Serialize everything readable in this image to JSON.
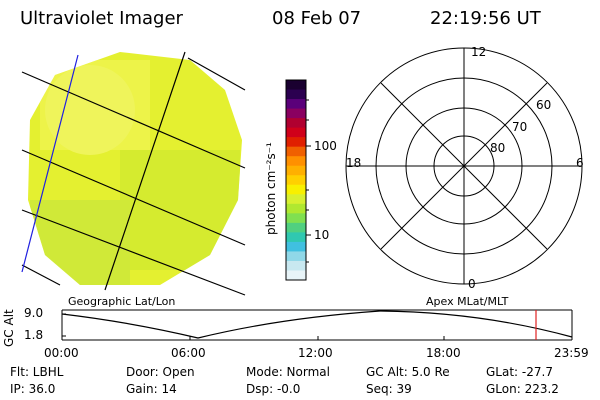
{
  "header": {
    "instrument": "Ultraviolet Imager",
    "date": "08 Feb 07",
    "time": "22:19:56 UT"
  },
  "colorbar": {
    "unit_label": "photon cm⁻²s⁻¹",
    "tick_labels": [
      "100",
      "10"
    ],
    "colors": [
      "#1a0030",
      "#2b0050",
      "#5a007a",
      "#8a0060",
      "#b00030",
      "#d0001a",
      "#e02000",
      "#f06000",
      "#ff9000",
      "#ffb000",
      "#ffd000",
      "#f8f000",
      "#d8f030",
      "#b0e830",
      "#80e050",
      "#50d080",
      "#30c8b0",
      "#40c0e0",
      "#90d8e8",
      "#c8e8f0",
      "#e8f4f8"
    ]
  },
  "geo_panel": {
    "label": "Geographic Lat/Lon"
  },
  "polar_panel": {
    "label": "Apex MLat/MLT",
    "mlt_labels": [
      "12",
      "18",
      "6",
      "0"
    ],
    "mlat_labels": [
      "60",
      "70",
      "80"
    ]
  },
  "orbit_plot": {
    "y_axis_label": "GC Alt",
    "y_ticks": [
      "9.0",
      "1.8"
    ],
    "x_ticks": [
      "00:00",
      "06:00",
      "12:00",
      "18:00",
      "23:59"
    ],
    "marker_color": "#e02020"
  },
  "footer": {
    "flt": "Flt: LBHL",
    "ip": "IP: 36.0",
    "door": "Door: Open",
    "gain": "Gain: 14",
    "mode": "Mode: Normal",
    "dsp": "Dsp:   -0.0",
    "gc_alt": "GC Alt: 5.0 Re",
    "seq": "Seq: 39",
    "glat": "GLat: -27.7",
    "glon": "GLon: 223.2"
  }
}
